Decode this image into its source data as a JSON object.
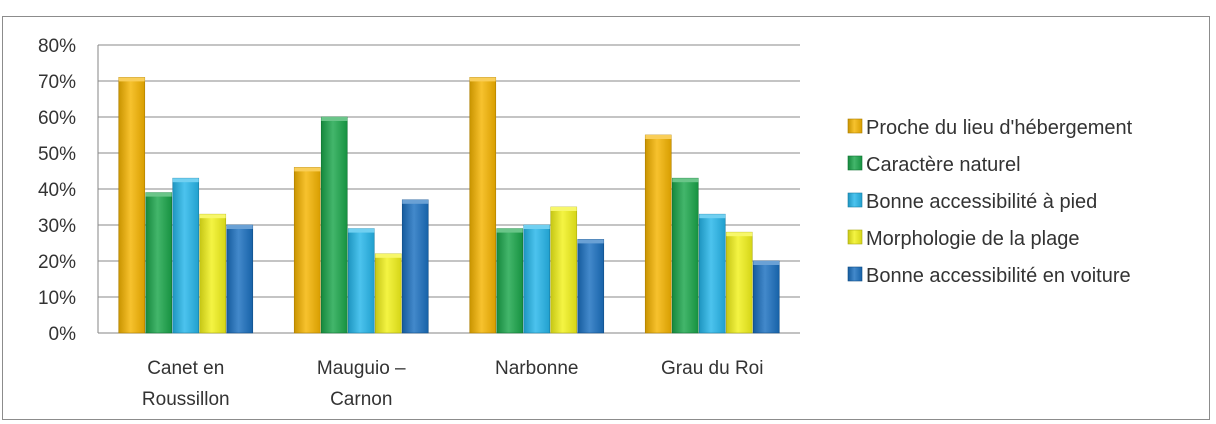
{
  "chart_data": {
    "type": "bar",
    "title": "",
    "xlabel": "",
    "ylabel": "",
    "ylim": [
      0,
      0.8
    ],
    "y_ticks": [
      "0%",
      "10%",
      "20%",
      "30%",
      "40%",
      "50%",
      "60%",
      "70%",
      "80%"
    ],
    "grid": true,
    "legend_position": "right",
    "categories": [
      [
        "Canet en",
        "Roussillon"
      ],
      [
        "Mauguio –",
        "Carnon"
      ],
      [
        "Narbonne"
      ],
      [
        "Grau du Roi"
      ]
    ],
    "series": [
      {
        "name": "Proche du lieu d'hébergement",
        "color": "#f5b400",
        "values": [
          0.71,
          0.46,
          0.71,
          0.55
        ]
      },
      {
        "name": "Caractère naturel",
        "color": "#1aa64a",
        "values": [
          0.39,
          0.6,
          0.29,
          0.43
        ]
      },
      {
        "name": "Bonne accessibilité à pied",
        "color": "#25b6ea",
        "values": [
          0.43,
          0.29,
          0.3,
          0.33
        ]
      },
      {
        "name": "Morphologie de la plage",
        "color": "#f2f21a",
        "values": [
          0.33,
          0.22,
          0.35,
          0.28
        ]
      },
      {
        "name": "Bonne accessibilité en voiture",
        "color": "#1a6fbf",
        "values": [
          0.3,
          0.37,
          0.26,
          0.2
        ]
      }
    ]
  }
}
